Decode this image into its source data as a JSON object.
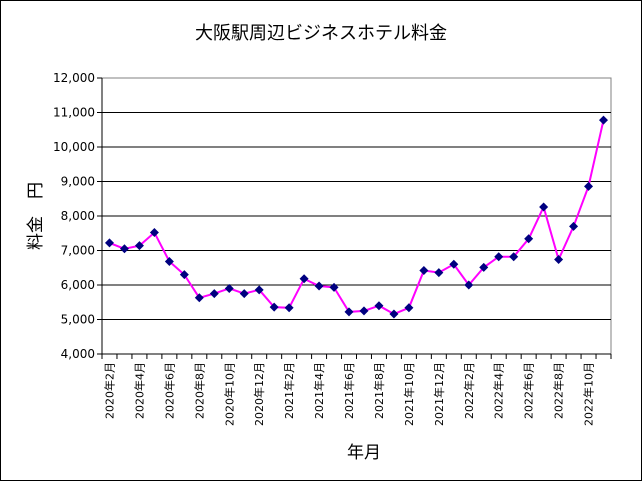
{
  "chart_data": {
    "type": "line",
    "title": "大阪駅周辺ビジネスホテル料金",
    "xlabel": "年月",
    "ylabel": "料金　円",
    "ylim": [
      4000,
      12000
    ],
    "yticks": [
      "4,000",
      "5,000",
      "6,000",
      "7,000",
      "8,000",
      "9,000",
      "10,000",
      "11,000",
      "12,000"
    ],
    "grid": true,
    "legend": "none",
    "line_color": "#ff00ff",
    "marker_color": "#000080",
    "x_labels": [
      "2020年2月",
      "2020年4月",
      "2020年6月",
      "2020年8月",
      "2020年10月",
      "2020年12月",
      "2021年2月",
      "2021年4月",
      "2021年6月",
      "2021年8月",
      "2021年10月",
      "2021年12月",
      "2022年2月",
      "2022年4月",
      "2022年6月",
      "2022年8月",
      "2022年10月"
    ],
    "x_label_every": 2,
    "series": [
      {
        "values": [
          7220,
          7050,
          7140,
          7520,
          6680,
          6300,
          5630,
          5750,
          5900,
          5750,
          5860,
          5360,
          5340,
          6180,
          5970,
          5930,
          5220,
          5250,
          5400,
          5160,
          5340,
          6420,
          6360,
          6600,
          6000,
          6510,
          6820,
          6820,
          7340,
          8260,
          6740,
          7700,
          8860,
          10780
        ]
      }
    ]
  }
}
